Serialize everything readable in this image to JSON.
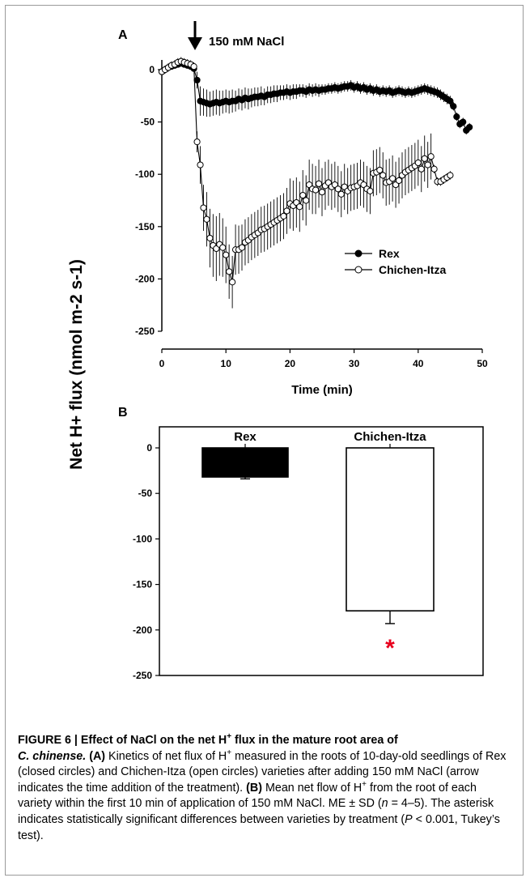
{
  "figure": {
    "panel_a_label": "A",
    "panel_b_label": "B",
    "treatment_annotation": "150 mM NaCl",
    "y_axis_label": "Net H+ flux (nmol m-2 s-1)",
    "colors": {
      "axis": "#000000",
      "asterisk": "#e8001c",
      "bar_rex": "#000000",
      "bar_chichen": "#ffffff"
    }
  },
  "chart_data": [
    {
      "type": "line",
      "panel": "A",
      "xlabel": "Time (min)",
      "ylabel": "Net H+ flux (nmol m-2 s-1)",
      "xlim": [
        0,
        50
      ],
      "ylim": [
        -250,
        0
      ],
      "x_ticks": [
        0,
        10,
        20,
        30,
        40,
        50
      ],
      "y_ticks": [
        0,
        -50,
        -100,
        -150,
        -200,
        -250
      ],
      "treatment_time": 5.6,
      "legend_position": "lower-right",
      "grid": false,
      "series": [
        {
          "name": "Rex",
          "marker": "closed-circle",
          "x": [
            0,
            0.5,
            1,
            1.5,
            2,
            2.5,
            3,
            3.5,
            4,
            4.5,
            5,
            5.5,
            6,
            6.5,
            7,
            7.5,
            8,
            8.5,
            9,
            9.5,
            10,
            10.5,
            11,
            11.5,
            12,
            12.5,
            13,
            13.5,
            14,
            14.5,
            15,
            15.5,
            16,
            16.5,
            17,
            17.5,
            18,
            18.5,
            19,
            19.5,
            20,
            20.5,
            21,
            21.5,
            22,
            22.5,
            23,
            23.5,
            24,
            24.5,
            25,
            25.5,
            26,
            26.5,
            27,
            27.5,
            28,
            28.5,
            29,
            29.5,
            30,
            30.5,
            31,
            31.5,
            32,
            32.5,
            33,
            33.5,
            34,
            34.5,
            35,
            35.5,
            36,
            36.5,
            37,
            37.5,
            38,
            38.5,
            39,
            39.5,
            40,
            40.5,
            41,
            41.5,
            42,
            42.5,
            43,
            43.5,
            44,
            44.5,
            45,
            45.5,
            46,
            46.5,
            47,
            47.5,
            48
          ],
          "y": [
            -2,
            0,
            2,
            3,
            4,
            5,
            6,
            5,
            4,
            3,
            1,
            -10,
            -30,
            -31,
            -32,
            -33,
            -32,
            -31,
            -32,
            -31,
            -30,
            -31,
            -30,
            -30,
            -28,
            -29,
            -27,
            -28,
            -27,
            -26,
            -26,
            -25,
            -26,
            -24,
            -24,
            -23,
            -23,
            -22,
            -22,
            -21,
            -22,
            -21,
            -21,
            -20,
            -20,
            -21,
            -19,
            -20,
            -19,
            -20,
            -19,
            -19,
            -18,
            -18,
            -17,
            -18,
            -17,
            -16,
            -16,
            -15,
            -17,
            -16,
            -18,
            -17,
            -19,
            -18,
            -20,
            -19,
            -21,
            -20,
            -21,
            -20,
            -22,
            -21,
            -20,
            -21,
            -22,
            -21,
            -22,
            -21,
            -20,
            -19,
            -18,
            -19,
            -20,
            -21,
            -22,
            -24,
            -26,
            -28,
            -30,
            -35,
            -45,
            -52,
            -50,
            -58,
            -55
          ],
          "error": [
            2,
            2,
            2,
            2,
            2,
            2,
            2,
            2,
            2,
            2,
            3,
            8,
            14,
            13,
            13,
            12,
            12,
            12,
            12,
            11,
            11,
            11,
            11,
            10,
            10,
            10,
            10,
            10,
            9,
            9,
            9,
            9,
            8,
            8,
            8,
            8,
            8,
            7,
            7,
            7,
            7,
            7,
            7,
            6,
            6,
            6,
            6,
            6,
            6,
            6,
            5,
            5,
            5,
            5,
            5,
            5,
            5,
            5,
            5,
            5,
            5,
            5,
            5,
            5,
            5,
            5,
            5,
            5,
            5,
            5,
            5,
            5,
            5,
            5,
            5,
            5,
            5,
            5,
            5,
            5,
            5,
            5,
            5,
            5,
            5,
            5,
            5,
            5,
            5,
            5,
            5,
            4,
            4,
            4,
            4,
            4,
            4
          ]
        },
        {
          "name": "Chichen-Itza",
          "marker": "open-circle",
          "x": [
            0,
            0.5,
            1,
            1.5,
            2,
            2.5,
            3,
            3.5,
            4,
            4.5,
            5,
            5.5,
            6,
            6.5,
            7,
            7.5,
            8,
            8.5,
            9,
            9.5,
            10,
            10.5,
            11,
            11.5,
            12,
            12.5,
            13,
            13.5,
            14,
            14.5,
            15,
            15.5,
            16,
            16.5,
            17,
            17.5,
            18,
            18.5,
            19,
            19.5,
            20,
            20.5,
            21,
            21.5,
            22,
            22.5,
            23,
            23.5,
            24,
            24.5,
            25,
            25.5,
            26,
            26.5,
            27,
            27.5,
            28,
            28.5,
            29,
            29.5,
            30,
            30.5,
            31,
            31.5,
            32,
            32.5,
            33,
            33.5,
            34,
            34.5,
            35,
            35.5,
            36,
            36.5,
            37,
            37.5,
            38,
            38.5,
            39,
            39.5,
            40,
            40.5,
            41,
            41.5,
            42,
            42.5,
            43,
            43.5,
            44,
            44.5,
            45
          ],
          "y": [
            -2,
            0,
            2,
            4,
            5,
            7,
            8,
            7,
            6,
            5,
            3,
            -69,
            -91,
            -132,
            -143,
            -161,
            -168,
            -171,
            -167,
            -170,
            -177,
            -193,
            -203,
            -172,
            -172,
            -170,
            -165,
            -163,
            -160,
            -158,
            -156,
            -153,
            -152,
            -150,
            -148,
            -146,
            -144,
            -142,
            -140,
            -135,
            -128,
            -130,
            -127,
            -131,
            -120,
            -125,
            -110,
            -114,
            -115,
            -109,
            -117,
            -111,
            -108,
            -112,
            -110,
            -114,
            -119,
            -112,
            -116,
            -113,
            -112,
            -111,
            -108,
            -110,
            -114,
            -116,
            -99,
            -98,
            -96,
            -101,
            -108,
            -107,
            -104,
            -110,
            -106,
            -101,
            -98,
            -96,
            -94,
            -92,
            -89,
            -95,
            -85,
            -91,
            -83,
            -95,
            -107,
            -107,
            -105,
            -103,
            -101
          ],
          "error": [
            4,
            4,
            4,
            4,
            4,
            4,
            4,
            4,
            4,
            4,
            4,
            10,
            18,
            22,
            26,
            28,
            30,
            31,
            30,
            28,
            27,
            26,
            25,
            24,
            23,
            22,
            22,
            22,
            22,
            22,
            22,
            22,
            22,
            22,
            22,
            22,
            22,
            22,
            22,
            22,
            24,
            24,
            24,
            24,
            24,
            24,
            24,
            24,
            23,
            23,
            23,
            23,
            22,
            22,
            22,
            22,
            22,
            22,
            22,
            22,
            22,
            22,
            22,
            22,
            22,
            22,
            22,
            22,
            22,
            22,
            22,
            22,
            22,
            22,
            22,
            22,
            22,
            22,
            22,
            22,
            22,
            22,
            22,
            22,
            22,
            4,
            4,
            4,
            4,
            4,
            4
          ]
        }
      ]
    },
    {
      "type": "bar",
      "panel": "B",
      "categories": [
        "Rex",
        "Chichen-Itza"
      ],
      "values": [
        -32,
        -179
      ],
      "error": [
        2,
        14
      ],
      "ylim": [
        -250,
        0
      ],
      "y_ticks": [
        0,
        -50,
        -100,
        -150,
        -200,
        -250
      ],
      "significance_marker": "*"
    }
  ],
  "caption": {
    "title_prefix": "FIGURE 6 | Effect of NaCl on the net H",
    "title_sup": "+",
    "title_middle": " flux in the mature root area of",
    "species": "C. chinense.",
    "a_label": "(A)",
    "a_text_1": " Kinetics of net flux of H",
    "a_sup": "+",
    "a_text_2": " measured in the roots of 10-day-old seedlings of Rex (closed circles) and Chichen-Itza (open circles) varieties after adding 150 mM NaCl (arrow indicates the time addition of the treatment). ",
    "b_label": "(B)",
    "b_text_1": " Mean net flow of H",
    "b_sup": "+",
    "b_text_2": " from the root of each variety within the first 10 min of application of 150 mM NaCl. ME ± SD (",
    "n_italic": "n",
    "n_rest": " = 4–5). The asterisk indicates statistically significant differences between varieties by treatment (",
    "p_italic": "P",
    "p_rest": " < 0.001, Tukey’s test)."
  }
}
